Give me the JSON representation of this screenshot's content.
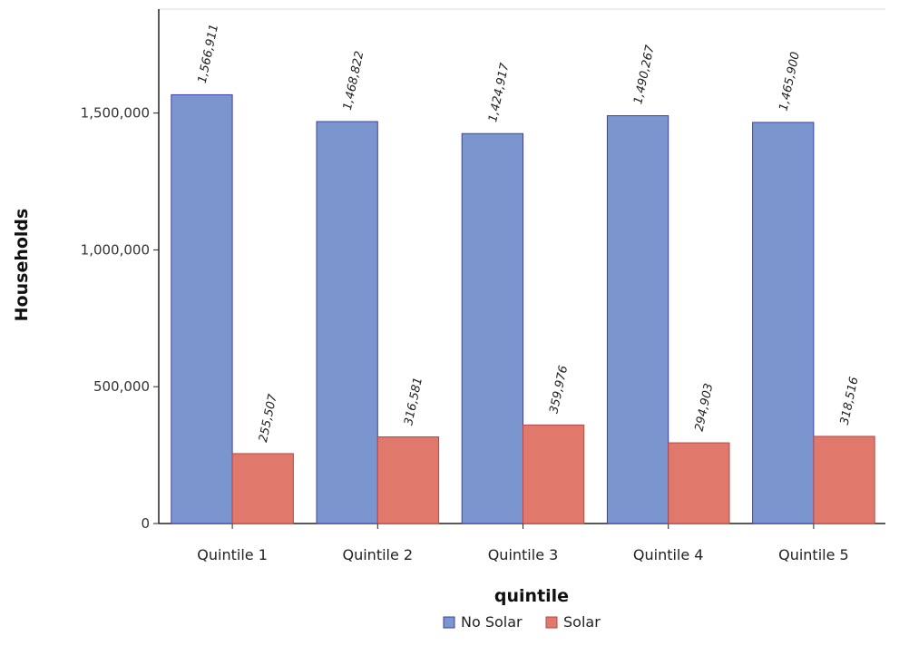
{
  "chart_data": {
    "type": "bar",
    "title": "",
    "xlabel": "quintile",
    "ylabel": "Households",
    "categories": [
      "Quintile 1",
      "Quintile 2",
      "Quintile 3",
      "Quintile 4",
      "Quintile 5"
    ],
    "ylim": [
      0,
      1880000
    ],
    "yticks": [
      0,
      500000,
      1000000,
      1500000
    ],
    "ytick_labels": [
      "0",
      "500,000",
      "1,000,000",
      "1,500,000"
    ],
    "grid": false,
    "legend_position": "bottom-center",
    "series": [
      {
        "name": "No Solar",
        "color": "#7b96cf",
        "stroke": "#3f3fa6",
        "values": [
          1566911,
          1468822,
          1424917,
          1490267,
          1465900
        ],
        "labels": [
          "1,566,911",
          "1,468,822",
          "1,424,917",
          "1,490,267",
          "1,465,900"
        ]
      },
      {
        "name": "Solar",
        "color": "#e0786b",
        "stroke": "#b44a48",
        "values": [
          255507,
          316581,
          359976,
          294903,
          318516
        ],
        "labels": [
          "255,507",
          "316,581",
          "359,976",
          "294,903",
          "318,516"
        ]
      }
    ]
  }
}
